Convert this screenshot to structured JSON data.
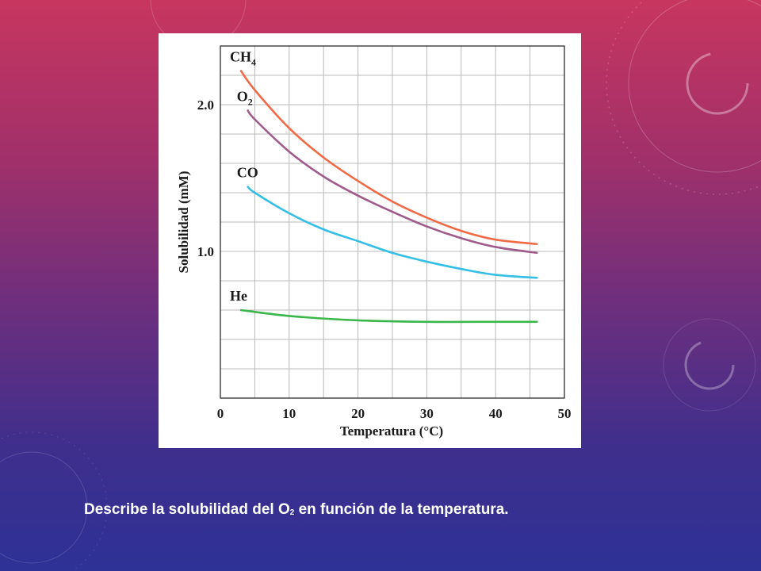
{
  "slide": {
    "caption_pre": "Describe la solubilidad del O",
    "caption_sub": "2",
    "caption_post": " en función de la temperatura."
  },
  "colors": {
    "background_top": "#c7365f",
    "background_bottom": "#2e3196",
    "grid": "#b9b9b9",
    "axis": "#1a1a1a"
  },
  "chart_data": {
    "type": "line",
    "xlabel": "Temperatura (°C)",
    "ylabel": "Solubilidad (mM)",
    "xlim": [
      0,
      50
    ],
    "ylim": [
      0,
      2.4
    ],
    "x_ticks": [
      0,
      10,
      20,
      30,
      40,
      50
    ],
    "x_tick_labels": [
      "0",
      "10",
      "20",
      "30",
      "40",
      "50"
    ],
    "y_ticks": [
      1.0,
      2.0
    ],
    "y_tick_labels": [
      "1.0",
      "2.0"
    ],
    "grid": true,
    "series": [
      {
        "name": "CH",
        "name_sub": "4",
        "color": "#f26a45",
        "x": [
          3,
          5,
          10,
          15,
          20,
          25,
          30,
          35,
          40,
          46
        ],
        "y": [
          2.23,
          2.1,
          1.84,
          1.64,
          1.48,
          1.34,
          1.23,
          1.14,
          1.08,
          1.05
        ]
      },
      {
        "name": "O",
        "name_sub": "2",
        "color": "#a05a8c",
        "x": [
          4,
          5,
          10,
          15,
          20,
          25,
          30,
          35,
          40,
          46
        ],
        "y": [
          1.96,
          1.9,
          1.68,
          1.51,
          1.38,
          1.27,
          1.17,
          1.09,
          1.03,
          0.99
        ]
      },
      {
        "name": "CO",
        "name_sub": "",
        "color": "#33bfe8",
        "x": [
          4,
          5,
          10,
          15,
          20,
          25,
          30,
          35,
          40,
          46
        ],
        "y": [
          1.44,
          1.4,
          1.26,
          1.15,
          1.07,
          0.99,
          0.93,
          0.88,
          0.84,
          0.82
        ]
      },
      {
        "name": "He",
        "name_sub": "",
        "color": "#3cb54a",
        "x": [
          3,
          10,
          20,
          30,
          40,
          46
        ],
        "y": [
          0.6,
          0.56,
          0.53,
          0.52,
          0.52,
          0.52
        ]
      }
    ]
  }
}
